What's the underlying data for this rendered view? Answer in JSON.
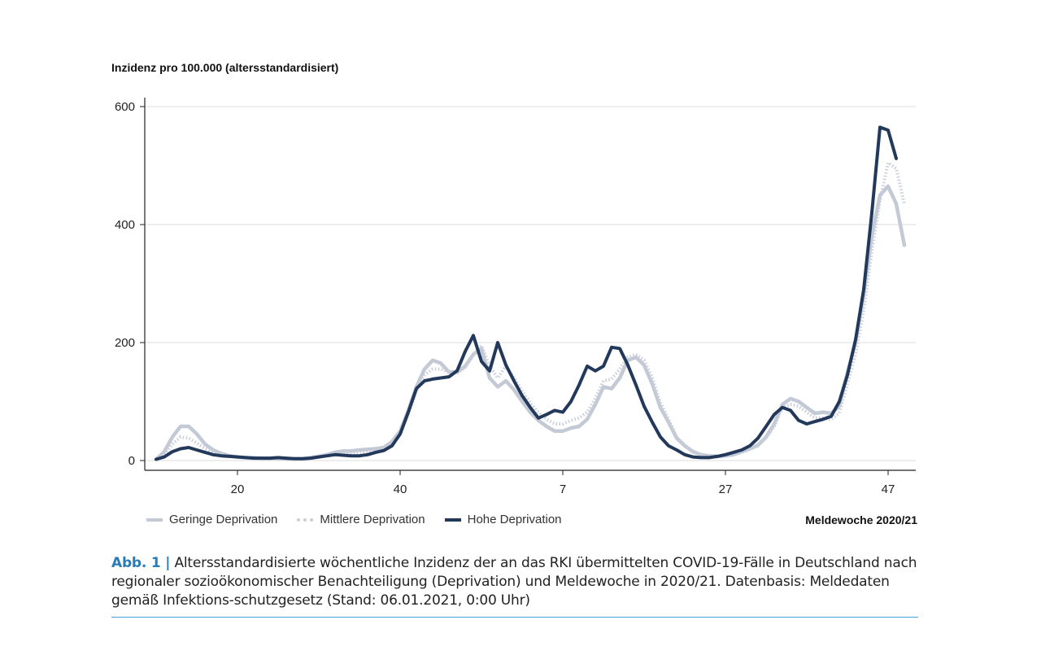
{
  "chart_data": {
    "type": "line",
    "ylabel": "Inzidenz pro 100.000 (altersstandardisiert)",
    "xlabel": "Meldewoche 2020/21",
    "ylim": [
      0,
      600
    ],
    "yticks": [
      0,
      200,
      400,
      600
    ],
    "xticks": [
      {
        "index": 10,
        "label": "20"
      },
      {
        "index": 30,
        "label": "40"
      },
      {
        "index": 50,
        "label": "7"
      },
      {
        "index": 70,
        "label": "27"
      },
      {
        "index": 90,
        "label": "47"
      }
    ],
    "series": [
      {
        "name": "Geringe Deprivation",
        "color": "#c3cad6",
        "style": "solid",
        "values": [
          2,
          15,
          40,
          58,
          58,
          45,
          28,
          18,
          12,
          8,
          6,
          5,
          5,
          4,
          4,
          4,
          3,
          3,
          3,
          5,
          7,
          10,
          14,
          16,
          16,
          18,
          19,
          20,
          22,
          32,
          50,
          85,
          125,
          155,
          170,
          165,
          150,
          150,
          160,
          180,
          190,
          140,
          125,
          135,
          120,
          100,
          82,
          68,
          58,
          50,
          50,
          55,
          58,
          70,
          95,
          125,
          122,
          140,
          170,
          175,
          162,
          130,
          90,
          65,
          38,
          25,
          15,
          10,
          8,
          7,
          8,
          10,
          15,
          20,
          26,
          40,
          62,
          95,
          105,
          100,
          90,
          80,
          82,
          80,
          92,
          150,
          200,
          280,
          380,
          450,
          465,
          435,
          365
        ]
      },
      {
        "name": "Mittlere Deprivation",
        "color": "#c8ceda",
        "style": "dotted",
        "values": [
          2,
          10,
          28,
          40,
          38,
          30,
          20,
          14,
          10,
          7,
          6,
          5,
          5,
          4,
          4,
          4,
          3,
          3,
          3,
          5,
          7,
          9,
          12,
          13,
          13,
          14,
          15,
          16,
          18,
          26,
          45,
          78,
          118,
          145,
          155,
          155,
          150,
          148,
          158,
          178,
          195,
          160,
          140,
          160,
          140,
          118,
          98,
          82,
          70,
          62,
          62,
          68,
          72,
          82,
          105,
          135,
          138,
          155,
          175,
          180,
          170,
          140,
          98,
          70,
          40,
          26,
          16,
          10,
          7,
          6,
          7,
          10,
          14,
          19,
          25,
          38,
          58,
          90,
          95,
          92,
          82,
          72,
          72,
          70,
          80,
          130,
          180,
          255,
          355,
          440,
          505,
          495,
          435
        ]
      },
      {
        "name": "Hohe Deprivation",
        "color": "#23395b",
        "style": "solid",
        "values": [
          2,
          6,
          15,
          20,
          22,
          18,
          14,
          10,
          8,
          7,
          6,
          5,
          4,
          4,
          4,
          5,
          4,
          3,
          3,
          4,
          6,
          8,
          10,
          9,
          8,
          8,
          10,
          14,
          17,
          25,
          45,
          82,
          122,
          135,
          138,
          140,
          142,
          152,
          185,
          212,
          168,
          152,
          200,
          162,
          135,
          110,
          90,
          72,
          78,
          85,
          82,
          100,
          128,
          160,
          152,
          160,
          192,
          190,
          162,
          128,
          92,
          65,
          40,
          25,
          18,
          10,
          6,
          5,
          5,
          7,
          10,
          14,
          18,
          25,
          38,
          58,
          78,
          90,
          85,
          68,
          62,
          66,
          70,
          75,
          100,
          145,
          205,
          290,
          420,
          565,
          560,
          512
        ]
      }
    ]
  },
  "legend": {
    "geringe": "Geringe Deprivation",
    "mittlere": "Mittlere Deprivation",
    "hohe": "Hohe Deprivation"
  },
  "caption": {
    "label": "Abb. 1 |",
    "text": " Altersstandardisierte wöchentliche Inzidenz der an das RKI übermittelten COVID-19-Fälle in Deutschland nach regionaler sozioökonomischer Benachteiligung (Deprivation) und Meldewoche in 2020/21. Datenbasis: Meldedaten gemäß Infektions-schutzgesetz (Stand: 06.01.2021, 0:00 Uhr)"
  }
}
